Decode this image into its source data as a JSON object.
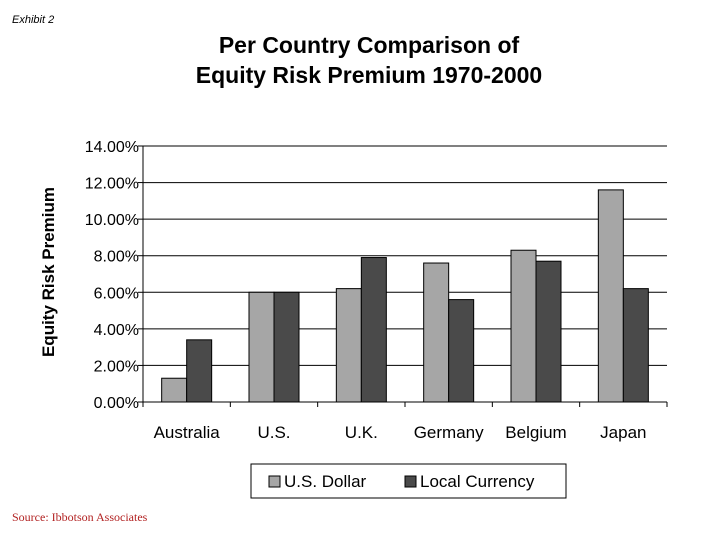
{
  "header": {
    "exhibit": "Exhibit 2",
    "title_line1": "Per Country Comparison of",
    "title_line2": "Equity Risk Premium 1970-2000"
  },
  "footer": {
    "source": "Source: Ibbotson Associates"
  },
  "chart_data": {
    "type": "bar",
    "categories": [
      "Australia",
      "U.S.",
      "U.K.",
      "Germany",
      "Belgium",
      "Japan"
    ],
    "series": [
      {
        "name": "U.S. Dollar",
        "color": "#a6a6a6",
        "values": [
          1.3,
          6.0,
          6.2,
          7.6,
          8.3,
          11.6
        ]
      },
      {
        "name": "Local Currency",
        "color": "#4a4a4a",
        "values": [
          3.4,
          6.0,
          7.9,
          5.6,
          7.7,
          6.2
        ]
      }
    ],
    "ylabel": "Equity Risk Premium",
    "xlabel": "",
    "ylim": [
      0,
      14
    ],
    "yticks": [
      0,
      2,
      4,
      6,
      8,
      10,
      12,
      14
    ],
    "ytick_labels": [
      "0.00%",
      "2.00%",
      "4.00%",
      "6.00%",
      "8.00%",
      "10.00%",
      "12.00%",
      "14.00%"
    ],
    "grid": true,
    "legend_position": "bottom"
  }
}
